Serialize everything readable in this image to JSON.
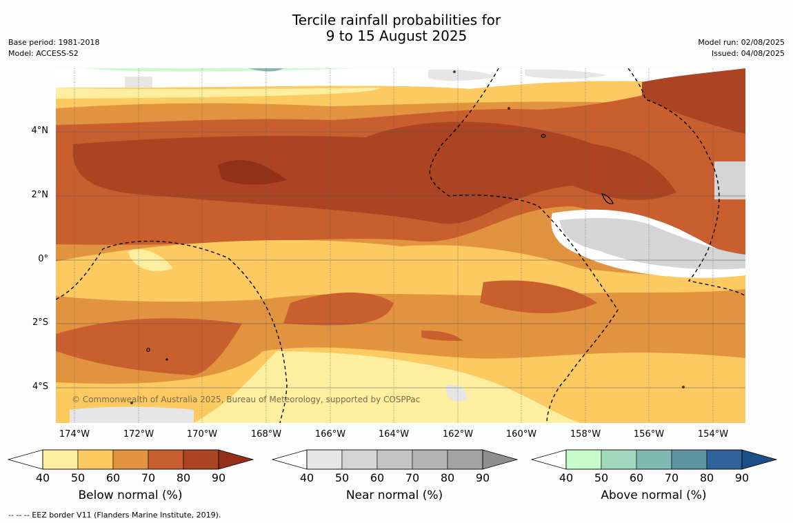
{
  "title": {
    "line1": "Tercile rainfall probabilities for",
    "line2": "9 to 15 August 2025"
  },
  "meta": {
    "base_period": "Base period: 1981-2018",
    "model": "Model: ACCESS-S2",
    "model_run": "Model run: 02/08/2025",
    "issued": "Issued: 04/08/2025"
  },
  "map": {
    "copyright": "© Commonwealth of Australia 2025, Bureau of Meteorology, supported by COSPPac",
    "latitude_labels": [
      "4°N",
      "2°N",
      "0°",
      "2°S",
      "4°S"
    ],
    "longitude_labels": [
      "174°W",
      "172°W",
      "170°W",
      "168°W",
      "166°W",
      "164°W",
      "162°W",
      "160°W",
      "158°W",
      "156°W",
      "154°W"
    ]
  },
  "colorbars": [
    {
      "title": "Below normal (%)",
      "ticks": [
        "40",
        "50",
        "60",
        "70",
        "80",
        "90"
      ],
      "colors": [
        "#fdeea0",
        "#fdca62",
        "#e2933f",
        "#c95f2f",
        "#ac4423",
        "#933019"
      ]
    },
    {
      "title": "Near normal (%)",
      "ticks": [
        "40",
        "50",
        "60",
        "70",
        "80",
        "90"
      ],
      "colors": [
        "#e6e6e6",
        "#d5d5d5",
        "#c4c4c4",
        "#b4b4b4",
        "#a3a3a3",
        "#8e8e8e"
      ]
    },
    {
      "title": "Above normal (%)",
      "ticks": [
        "40",
        "50",
        "60",
        "70",
        "80",
        "90"
      ],
      "colors": [
        "#c8fbcb",
        "#a2d9be",
        "#80b8b2",
        "#5c939f",
        "#30619a",
        "#1d4f86"
      ]
    }
  ],
  "footer": "--  --  -- EEZ border V11 (Flanders Marine Institute, 2019)."
}
